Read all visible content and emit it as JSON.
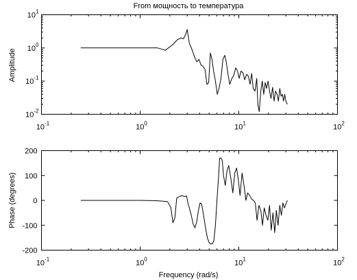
{
  "chart_data": [
    {
      "type": "line",
      "title": "From мощность to температура",
      "xlabel": "",
      "ylabel": "Amplitude",
      "xscale": "log",
      "yscale": "log",
      "xlim": [
        0.1,
        100
      ],
      "ylim": [
        0.01,
        10
      ],
      "grid": false,
      "x_ticks": [
        {
          "base": "10",
          "exp": "-1"
        },
        {
          "base": "10",
          "exp": "0"
        },
        {
          "base": "10",
          "exp": "1"
        },
        {
          "base": "10",
          "exp": "2"
        }
      ],
      "y_ticks": [
        {
          "base": "10",
          "exp": "-2"
        },
        {
          "base": "10",
          "exp": "-1"
        },
        {
          "base": "10",
          "exp": "0"
        },
        {
          "base": "10",
          "exp": "1"
        }
      ],
      "series": [
        {
          "x": [
            0.25,
            0.5,
            1,
            1.5,
            1.8,
            2.1,
            2.4,
            2.6,
            2.75,
            2.9,
            3.0,
            3.15,
            3.35,
            3.55,
            3.75,
            3.95,
            4.15,
            4.35,
            4.55,
            4.75,
            4.95,
            5.15,
            5.35,
            5.55,
            5.8,
            6.05,
            6.3,
            6.6,
            6.9,
            7.2,
            7.5,
            7.8,
            8.1,
            8.5,
            8.9,
            9.3,
            9.7,
            10.1,
            10.5,
            11.0,
            11.5,
            12.0,
            12.5,
            13.0,
            13.5,
            14.0,
            14.6,
            15.2,
            15.6,
            16.1,
            16.7,
            17.3,
            17.9,
            18.5,
            19.1,
            19.8,
            20.5,
            21.2,
            22.0,
            22.8,
            23.6,
            24.4,
            25.2,
            26.0,
            26.8,
            27.6,
            28.4,
            29.2,
            30.0,
            31.0
          ],
          "y": [
            1.0,
            1.0,
            1.0,
            1.0,
            0.85,
            1.2,
            1.8,
            2.0,
            1.9,
            2.6,
            3.6,
            1.4,
            0.9,
            0.55,
            0.38,
            0.45,
            0.3,
            0.28,
            0.22,
            0.08,
            0.09,
            0.7,
            0.45,
            0.2,
            0.1,
            0.04,
            0.06,
            0.12,
            0.45,
            0.6,
            0.35,
            0.15,
            0.08,
            0.12,
            0.15,
            0.25,
            0.2,
            0.12,
            0.2,
            0.18,
            0.11,
            0.16,
            0.14,
            0.08,
            0.17,
            0.06,
            0.05,
            0.12,
            0.02,
            0.012,
            0.05,
            0.1,
            0.04,
            0.09,
            0.06,
            0.1,
            0.05,
            0.03,
            0.065,
            0.025,
            0.05,
            0.04,
            0.025,
            0.06,
            0.035,
            0.04,
            0.025,
            0.04,
            0.025,
            0.02
          ]
        }
      ]
    },
    {
      "type": "line",
      "title": "",
      "xlabel": "Frequency (rad/s)",
      "ylabel": "Phase (degrees)",
      "xscale": "log",
      "yscale": "linear",
      "xlim": [
        0.1,
        100
      ],
      "ylim": [
        -200,
        200
      ],
      "grid": false,
      "x_ticks": [
        {
          "base": "10",
          "exp": "-1"
        },
        {
          "base": "10",
          "exp": "0"
        },
        {
          "base": "10",
          "exp": "1"
        },
        {
          "base": "10",
          "exp": "2"
        }
      ],
      "y_ticks": [
        {
          "value": 200,
          "label": "200"
        },
        {
          "value": 100,
          "label": "100"
        },
        {
          "value": 0,
          "label": "0"
        },
        {
          "value": -100,
          "label": "-100"
        },
        {
          "value": -200,
          "label": "-200"
        }
      ],
      "series": [
        {
          "x": [
            0.25,
            0.5,
            1,
            1.4,
            1.7,
            1.9,
            2.05,
            2.15,
            2.25,
            2.35,
            2.5,
            2.65,
            2.8,
            2.95,
            3.05,
            3.15,
            3.3,
            3.45,
            3.6,
            3.75,
            3.9,
            4.05,
            4.2,
            4.4,
            4.6,
            4.8,
            5.0,
            5.2,
            5.4,
            5.6,
            5.8,
            6.0,
            6.2,
            6.4,
            6.6,
            6.8,
            7.0,
            7.3,
            7.6,
            7.9,
            8.3,
            8.7,
            9.1,
            9.5,
            9.9,
            10.3,
            10.8,
            11.3,
            11.8,
            12.3,
            12.9,
            13.5,
            14.1,
            14.7,
            15.3,
            16.0,
            16.7,
            17.4,
            18.1,
            18.9,
            19.7,
            20.5,
            21.3,
            22.2,
            23.1,
            24.0,
            25.0,
            26.0,
            27.0,
            28.0,
            29.0,
            30.0,
            31.0
          ],
          "y": [
            0,
            0,
            0,
            -1,
            -3,
            -5,
            -30,
            -90,
            -70,
            10,
            15,
            20,
            15,
            18,
            -10,
            -30,
            -60,
            -95,
            -110,
            -85,
            -40,
            -10,
            -15,
            -60,
            -110,
            -150,
            -170,
            -175,
            -175,
            -160,
            -100,
            0,
            80,
            170,
            170,
            160,
            100,
            60,
            120,
            140,
            90,
            30,
            110,
            130,
            80,
            20,
            110,
            60,
            0,
            30,
            20,
            5,
            0,
            -10,
            -80,
            -20,
            -40,
            -100,
            -30,
            -60,
            -80,
            -20,
            -120,
            -50,
            -130,
            -40,
            -100,
            -20,
            -60,
            -10,
            -30,
            -15,
            0
          ]
        }
      ]
    }
  ]
}
